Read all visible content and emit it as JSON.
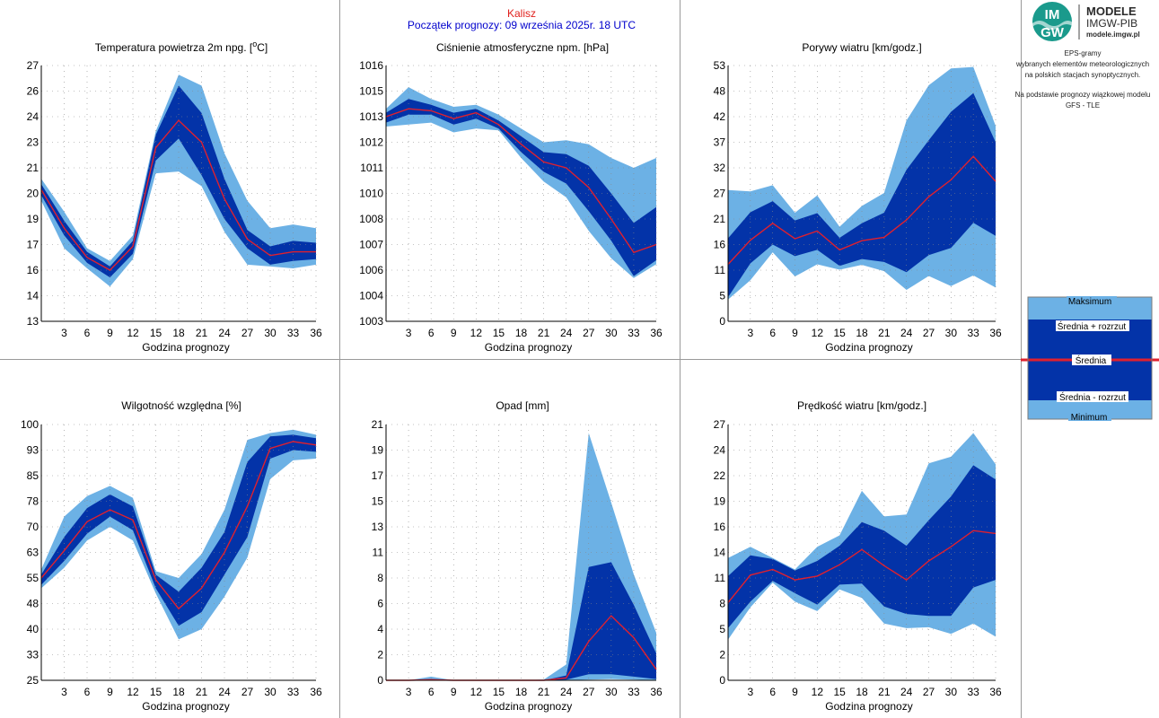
{
  "header": {
    "location": "Kalisz",
    "forecast_start": "Początek prognozy: 09 września 2025r. 18 UTC"
  },
  "logo": {
    "mark_top": "IM",
    "mark_bottom": "GW",
    "title": "MODELE",
    "subtitle": "IMGW-PIB",
    "url": "modele.imgw.pl"
  },
  "description": {
    "lines": [
      "EPS-gramy",
      "wybranych elementów meteorologicznych",
      "na polskich stacjach  synoptycznych.",
      "",
      "Na podstawie prognozy wiązkowej modelu",
      "GFS - TLE"
    ]
  },
  "legend": {
    "max": "Maksimum",
    "mean_plus": "Średnia + rozrzut",
    "mean": "Średnia",
    "mean_minus": "Średnia - rozrzut",
    "min": "Minimum"
  },
  "colors": {
    "band_outer": "#6cb1e5",
    "band_inner": "#0333a8",
    "mean_line": "#e0202e",
    "grid": "#888888",
    "divider": "#999999"
  },
  "chart_data": [
    {
      "type": "area",
      "title": "Temperatura powietrza 2m npg. [°C]",
      "title_main": "Temperatura powietrza 2m npg. [",
      "title_sup": "o",
      "title_end": "C]",
      "xlabel": "Godzina prognozy",
      "x": [
        0,
        3,
        6,
        9,
        12,
        15,
        18,
        21,
        24,
        27,
        30,
        33,
        36
      ],
      "xticks": [
        "3",
        "6",
        "9",
        "12",
        "15",
        "18",
        "21",
        "24",
        "27",
        "30",
        "33",
        "36"
      ],
      "ylim": [
        13,
        27
      ],
      "yticks": [
        "13",
        "14",
        "16",
        "17",
        "19",
        "20",
        "21",
        "23",
        "24",
        "26",
        "27"
      ],
      "min": [
        19.6,
        17.0,
        15.9,
        14.9,
        16.4,
        21.1,
        21.2,
        20.4,
        17.9,
        16.1,
        16.0,
        15.9,
        16.1
      ],
      "mean_minus": [
        19.9,
        17.7,
        16.2,
        15.4,
        16.7,
        21.8,
        23.0,
        21.0,
        18.6,
        17.0,
        16.1,
        16.3,
        16.4
      ],
      "mean": [
        20.2,
        18.1,
        16.5,
        15.8,
        17.1,
        22.5,
        24.0,
        22.8,
        19.7,
        17.5,
        16.6,
        16.8,
        16.8
      ],
      "mean_plus": [
        20.5,
        18.5,
        16.8,
        16.0,
        17.4,
        23.2,
        25.9,
        24.4,
        20.8,
        18.0,
        17.1,
        17.4,
        17.3
      ],
      "max": [
        20.8,
        19.0,
        17.0,
        16.3,
        17.7,
        23.4,
        26.5,
        25.9,
        22.2,
        19.6,
        18.1,
        18.3,
        18.1
      ]
    },
    {
      "type": "area",
      "title": "Ciśnienie atmosferyczne npm. [hPa]",
      "xlabel": "Godzina prognozy",
      "x": [
        0,
        3,
        6,
        9,
        12,
        15,
        18,
        21,
        24,
        27,
        30,
        33,
        36
      ],
      "xticks": [
        "3",
        "6",
        "9",
        "12",
        "15",
        "18",
        "21",
        "24",
        "27",
        "30",
        "33",
        "36"
      ],
      "ylim": [
        1003,
        1016
      ],
      "yticks": [
        "1003",
        "1004",
        "1006",
        "1007",
        "1008",
        "1010",
        "1011",
        "1012",
        "1013",
        "1015",
        "1016"
      ],
      "min": [
        1012.9,
        1013.0,
        1013.1,
        1012.6,
        1012.8,
        1012.7,
        1011.3,
        1010.1,
        1009.3,
        1007.6,
        1006.2,
        1005.2,
        1005.9
      ],
      "mean_minus": [
        1013.1,
        1013.5,
        1013.5,
        1013.0,
        1013.3,
        1012.8,
        1011.6,
        1010.6,
        1010.0,
        1008.6,
        1007.1,
        1005.3,
        1006.1
      ],
      "mean": [
        1013.4,
        1013.8,
        1013.7,
        1013.3,
        1013.6,
        1013.0,
        1012.0,
        1011.1,
        1010.8,
        1009.8,
        1008.2,
        1006.5,
        1006.9
      ],
      "mean_plus": [
        1013.6,
        1014.3,
        1014.0,
        1013.6,
        1013.8,
        1013.2,
        1012.4,
        1011.6,
        1011.5,
        1010.9,
        1009.5,
        1008.0,
        1008.8
      ],
      "max": [
        1013.8,
        1014.9,
        1014.3,
        1013.9,
        1014.0,
        1013.5,
        1012.8,
        1012.1,
        1012.2,
        1012.0,
        1011.3,
        1010.8,
        1011.3
      ]
    },
    {
      "type": "area",
      "title": "Porywy wiatru [km/godz.]",
      "xlabel": "Godzina prognozy",
      "x": [
        0,
        3,
        6,
        9,
        12,
        15,
        18,
        21,
        24,
        27,
        30,
        33,
        36
      ],
      "xticks": [
        "3",
        "6",
        "9",
        "12",
        "15",
        "18",
        "21",
        "24",
        "27",
        "30",
        "33",
        "36"
      ],
      "ylim": [
        0,
        53
      ],
      "yticks": [
        "0",
        "5",
        "11",
        "16",
        "21",
        "27",
        "32",
        "37",
        "42",
        "48",
        "53"
      ],
      "min": [
        4.5,
        8.5,
        14.3,
        9.3,
        11.8,
        10.7,
        11.7,
        10.4,
        6.5,
        9.4,
        7.3,
        9.5,
        7.0
      ],
      "mean_minus": [
        5.0,
        12.0,
        15.9,
        13.5,
        14.8,
        11.5,
        12.9,
        12.3,
        10.2,
        13.7,
        15.2,
        20.4,
        17.7
      ],
      "mean": [
        11.8,
        16.8,
        20.3,
        17.1,
        18.7,
        14.8,
        16.7,
        17.4,
        21.0,
        25.8,
        29.3,
        34.2,
        29.0
      ],
      "mean_plus": [
        17.2,
        22.6,
        24.9,
        20.9,
        22.4,
        17.3,
        20.3,
        22.5,
        31.4,
        37.5,
        43.4,
        47.3,
        37.1
      ],
      "max": [
        27.2,
        26.9,
        28.2,
        22.5,
        26.1,
        19.6,
        23.9,
        26.6,
        41.6,
        48.9,
        52.4,
        52.7,
        40.5
      ]
    },
    {
      "type": "area",
      "title": "Wilgotność względna [%]",
      "xlabel": "Godzina prognozy",
      "x": [
        0,
        3,
        6,
        9,
        12,
        15,
        18,
        21,
        24,
        27,
        30,
        33,
        36
      ],
      "xticks": [
        "3",
        "6",
        "9",
        "12",
        "15",
        "18",
        "21",
        "24",
        "27",
        "30",
        "33",
        "36"
      ],
      "ylim": [
        25,
        100
      ],
      "yticks": [
        "25",
        "33",
        "40",
        "48",
        "55",
        "63",
        "70",
        "78",
        "85",
        "93",
        "100"
      ],
      "min": [
        52.0,
        58.0,
        66.0,
        70.0,
        66.0,
        50.5,
        37.0,
        40.0,
        49.5,
        61.0,
        84.0,
        89.5,
        90.0
      ],
      "mean_minus": [
        53.0,
        60.0,
        68.0,
        73.0,
        69.0,
        52.0,
        41.0,
        45.0,
        56.0,
        67.0,
        90.0,
        92.5,
        92.0
      ],
      "mean": [
        55.0,
        63.0,
        71.5,
        75.0,
        72.0,
        54.5,
        46.0,
        52.0,
        62.5,
        76.0,
        93.0,
        95.0,
        94.0
      ],
      "mean_plus": [
        56.0,
        67.0,
        75.5,
        79.5,
        76.0,
        56.0,
        51.0,
        58.0,
        68.5,
        89.0,
        96.5,
        97.0,
        96.0
      ],
      "max": [
        57.5,
        73.0,
        79.0,
        82.0,
        78.5,
        57.0,
        55.0,
        62.0,
        75.0,
        95.5,
        97.5,
        98.5,
        97.0
      ]
    },
    {
      "type": "area",
      "title": "Opad [mm]",
      "xlabel": "Godzina prognozy",
      "x": [
        0,
        3,
        6,
        9,
        12,
        15,
        18,
        21,
        24,
        27,
        30,
        33,
        36
      ],
      "xticks": [
        "3",
        "6",
        "9",
        "12",
        "15",
        "18",
        "21",
        "24",
        "27",
        "30",
        "33",
        "36"
      ],
      "ylim": [
        0,
        21
      ],
      "yticks": [
        "0",
        "2",
        "4",
        "6",
        "8",
        "11",
        "13",
        "15",
        "17",
        "19",
        "21"
      ],
      "min": [
        0,
        0,
        0,
        0,
        0,
        0,
        0,
        0,
        0,
        0.05,
        0.1,
        0.05,
        0
      ],
      "mean_minus": [
        0,
        0,
        0,
        0,
        0,
        0,
        0,
        0,
        0.05,
        0.5,
        0.5,
        0.3,
        0.1
      ],
      "mean": [
        0,
        0,
        0.05,
        0,
        0,
        0,
        0,
        0,
        0.2,
        3.2,
        5.3,
        3.5,
        0.9
      ],
      "mean_plus": [
        0,
        0,
        0.1,
        0,
        0,
        0,
        0,
        0,
        0.4,
        9.3,
        9.7,
        6.2,
        2.2
      ],
      "max": [
        0,
        0,
        0.3,
        0,
        0,
        0,
        0,
        0.05,
        1.3,
        20.3,
        14.6,
        8.7,
        3.9
      ]
    },
    {
      "type": "area",
      "title": "Prędkość wiatru [km/godz.]",
      "xlabel": "Godzina prognozy",
      "x": [
        0,
        3,
        6,
        9,
        12,
        15,
        18,
        21,
        24,
        27,
        30,
        33,
        36
      ],
      "xticks": [
        "3",
        "6",
        "9",
        "12",
        "15",
        "18",
        "21",
        "24",
        "27",
        "30",
        "33",
        "36"
      ],
      "ylim": [
        0,
        27
      ],
      "yticks": [
        "0",
        "2",
        "5",
        "8",
        "11",
        "14",
        "16",
        "19",
        "22",
        "24",
        "27"
      ],
      "min": [
        4.3,
        7.7,
        10.3,
        8.3,
        7.3,
        9.6,
        8.7,
        6.0,
        5.5,
        5.6,
        4.9,
        6.0,
        4.6
      ],
      "mean_minus": [
        5.5,
        8.3,
        10.5,
        9.2,
        8.0,
        10.1,
        10.2,
        7.8,
        7.0,
        6.8,
        6.8,
        9.8,
        10.6
      ],
      "mean": [
        8.2,
        11.1,
        11.7,
        10.6,
        11.0,
        12.2,
        13.8,
        12.1,
        10.6,
        12.6,
        14.1,
        15.8,
        15.5
      ],
      "mean_plus": [
        11.0,
        13.2,
        12.8,
        11.6,
        12.6,
        14.2,
        16.7,
        15.8,
        14.2,
        16.9,
        19.4,
        22.7,
        21.2
      ],
      "max": [
        12.9,
        14.1,
        12.9,
        11.7,
        14.1,
        15.3,
        20.0,
        17.3,
        17.5,
        22.9,
        23.6,
        26.1,
        22.8
      ]
    }
  ]
}
